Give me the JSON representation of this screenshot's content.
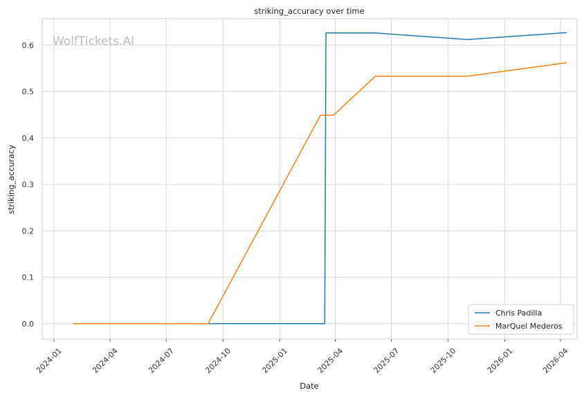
{
  "chart_data": {
    "type": "line",
    "title": "striking_accuracy over time",
    "xlabel": "Date",
    "ylabel": "striking_accuracy",
    "watermark": "WolfTickets.AI",
    "x_ticks": [
      "2024-01",
      "2024-04",
      "2024-07",
      "2024-10",
      "2025-01",
      "2025-04",
      "2025-07",
      "2025-10",
      "2026-01",
      "2026-04"
    ],
    "y_ticks": [
      "0.0",
      "0.1",
      "0.2",
      "0.3",
      "0.4",
      "0.5",
      "0.6"
    ],
    "xlim": [
      "2023-12-13",
      "2026-04-28"
    ],
    "ylim": [
      -0.033,
      0.657
    ],
    "grid": true,
    "legend_position": "lower-right",
    "series": [
      {
        "name": "Chris Padilla",
        "color": "#1f77b4",
        "points": [
          {
            "x": "2024-04-27",
            "y": 0.0
          },
          {
            "x": "2025-03-15",
            "y": 0.0
          },
          {
            "x": "2025-03-17",
            "y": 0.626
          },
          {
            "x": "2025-06-05",
            "y": 0.626
          },
          {
            "x": "2025-11-01",
            "y": 0.612
          },
          {
            "x": "2026-04-11",
            "y": 0.627
          }
        ]
      },
      {
        "name": "MarQuel Mederos",
        "color": "#ff7f0e",
        "points": [
          {
            "x": "2024-02-01",
            "y": 0.0
          },
          {
            "x": "2024-09-07",
            "y": 0.0
          },
          {
            "x": "2025-03-08",
            "y": 0.449
          },
          {
            "x": "2025-03-29",
            "y": 0.449
          },
          {
            "x": "2025-06-05",
            "y": 0.533
          },
          {
            "x": "2025-11-01",
            "y": 0.533
          },
          {
            "x": "2026-04-11",
            "y": 0.562
          }
        ]
      }
    ]
  }
}
